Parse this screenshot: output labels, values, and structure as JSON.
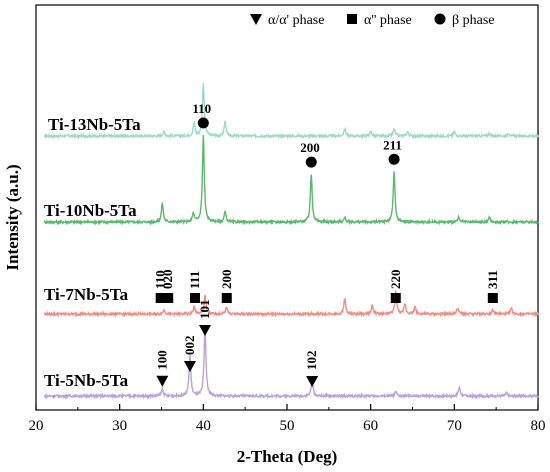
{
  "chart_data": {
    "type": "line",
    "xlabel": "2-Theta (Deg)",
    "ylabel": "Intensity (a.u.)",
    "xlim": [
      20,
      80
    ],
    "xticks": [
      20,
      30,
      40,
      50,
      60,
      70,
      80
    ],
    "yticks": "none",
    "grid": false,
    "legend": {
      "placement": "top",
      "entries": [
        {
          "marker": "triangle-down",
          "label": "α/α' phase"
        },
        {
          "marker": "square",
          "label": "α'' phase"
        },
        {
          "marker": "circle",
          "label": "β phase"
        }
      ]
    },
    "series": [
      {
        "name": "Ti-13Nb-5Ta",
        "color": "#9ddbc8",
        "baseline": 0,
        "peaks": [
          [
            35.3,
            3
          ],
          [
            38.9,
            9
          ],
          [
            40.0,
            36
          ],
          [
            42.6,
            10
          ],
          [
            56.9,
            5
          ],
          [
            60.0,
            3
          ],
          [
            62.8,
            5
          ],
          [
            64.4,
            3
          ],
          [
            70.0,
            3
          ],
          [
            74.2,
            2
          ],
          [
            76.5,
            2
          ]
        ]
      },
      {
        "name": "Ti-10Nb-5Ta",
        "color": "#5cb870",
        "baseline": 0,
        "peaks": [
          [
            35.1,
            13
          ],
          [
            38.8,
            6
          ],
          [
            40.0,
            60
          ],
          [
            42.6,
            7
          ],
          [
            52.9,
            33
          ],
          [
            56.9,
            3
          ],
          [
            62.8,
            35
          ],
          [
            70.5,
            3
          ],
          [
            74.2,
            3
          ]
        ]
      },
      {
        "name": "Ti-7Nb-5Ta",
        "color": "#f08e84",
        "baseline": 0,
        "peaks": [
          [
            35.3,
            3
          ],
          [
            38.9,
            5
          ],
          [
            40.2,
            13
          ],
          [
            42.8,
            5
          ],
          [
            56.9,
            11
          ],
          [
            60.2,
            6
          ],
          [
            63.0,
            16
          ],
          [
            64.1,
            7
          ],
          [
            65.3,
            5
          ],
          [
            70.4,
            4
          ],
          [
            74.6,
            3
          ],
          [
            76.8,
            4
          ]
        ]
      },
      {
        "name": "Ti-5Nb-5Ta",
        "color": "#b9a4d8",
        "baseline": 0,
        "peaks": [
          [
            35.1,
            5
          ],
          [
            38.4,
            28
          ],
          [
            40.2,
            48
          ],
          [
            53.0,
            11
          ],
          [
            63.0,
            3
          ],
          [
            70.6,
            6
          ],
          [
            76.2,
            2
          ]
        ]
      }
    ],
    "annotations": [
      {
        "series": "Ti-10Nb-5Ta",
        "marker": "circle",
        "hkl": "110",
        "x": 40.0
      },
      {
        "series": "Ti-10Nb-5Ta",
        "marker": "circle",
        "hkl": "200",
        "x": 52.9
      },
      {
        "series": "Ti-10Nb-5Ta",
        "marker": "circle",
        "hkl": "211",
        "x": 62.8
      },
      {
        "series": "Ti-7Nb-5Ta",
        "marker": "square",
        "hkl": "110",
        "x": 34.9
      },
      {
        "series": "Ti-7Nb-5Ta",
        "marker": "square",
        "hkl": "020",
        "x": 35.8
      },
      {
        "series": "Ti-7Nb-5Ta",
        "marker": "square",
        "hkl": "111",
        "x": 39.0
      },
      {
        "series": "Ti-7Nb-5Ta",
        "marker": "square",
        "hkl": "200",
        "x": 42.8
      },
      {
        "series": "Ti-7Nb-5Ta",
        "marker": "square",
        "hkl": "220",
        "x": 63.0
      },
      {
        "series": "Ti-7Nb-5Ta",
        "marker": "square",
        "hkl": "311",
        "x": 74.6
      },
      {
        "series": "Ti-5Nb-5Ta",
        "marker": "triangle-down",
        "hkl": "100",
        "x": 35.1
      },
      {
        "series": "Ti-5Nb-5Ta",
        "marker": "triangle-down",
        "hkl": "002",
        "x": 38.4
      },
      {
        "series": "Ti-5Nb-5Ta",
        "marker": "triangle-down",
        "hkl": "101",
        "x": 40.2
      },
      {
        "series": "Ti-5Nb-5Ta",
        "marker": "triangle-down",
        "hkl": "102",
        "x": 53.0
      }
    ]
  }
}
